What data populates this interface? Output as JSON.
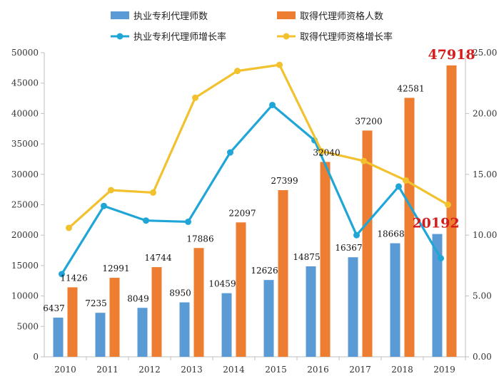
{
  "chart_data": {
    "type": "bar",
    "categories": [
      "2010",
      "2011",
      "2012",
      "2013",
      "2014",
      "2015",
      "2016",
      "2017",
      "2018",
      "2019"
    ],
    "series": [
      {
        "name": "执业专利代理师数",
        "kind": "bar",
        "axis": "left",
        "color": "#5b9bd5",
        "values": [
          6437,
          7235,
          8049,
          8950,
          10459,
          12626,
          14875,
          16367,
          18668,
          20192
        ]
      },
      {
        "name": "取得代理师资格人数",
        "kind": "bar",
        "axis": "left",
        "color": "#ed7d31",
        "values": [
          11426,
          12991,
          14744,
          17886,
          22097,
          27399,
          32040,
          37200,
          42581,
          47918
        ]
      },
      {
        "name": "执业专利代理师增长率",
        "kind": "line",
        "axis": "right",
        "color": "#1fa6d6",
        "values": [
          6.8,
          12.4,
          11.2,
          11.1,
          16.8,
          20.7,
          17.8,
          10.0,
          14.0,
          8.1
        ]
      },
      {
        "name": "取得代理师资格增长率",
        "kind": "line",
        "axis": "right",
        "color": "#f2c12e",
        "values": [
          10.6,
          13.7,
          13.5,
          21.3,
          23.5,
          24.0,
          16.9,
          16.1,
          14.5,
          12.5
        ]
      }
    ],
    "left_axis": {
      "ylim": [
        0,
        50000
      ],
      "ticks": [
        "0",
        "5000",
        "10000",
        "15000",
        "20000",
        "25000",
        "30000",
        "35000",
        "40000",
        "45000",
        "50000"
      ]
    },
    "right_axis": {
      "ylim": [
        0,
        25
      ],
      "ticks": [
        "0.00",
        "5.00",
        "10.00",
        "15.00",
        "20.00",
        "25.00"
      ]
    },
    "legend": {
      "placement": "top",
      "columns": 2
    },
    "highlights": [
      {
        "series": "取得代理师资格人数",
        "category": "2019",
        "label": "47918",
        "color": "#d41c1c"
      },
      {
        "series": "执业专利代理师数",
        "category": "2019",
        "label": "20192",
        "color": "#d41c1c"
      }
    ],
    "title": "",
    "xlabel": "",
    "ylabel": ""
  }
}
